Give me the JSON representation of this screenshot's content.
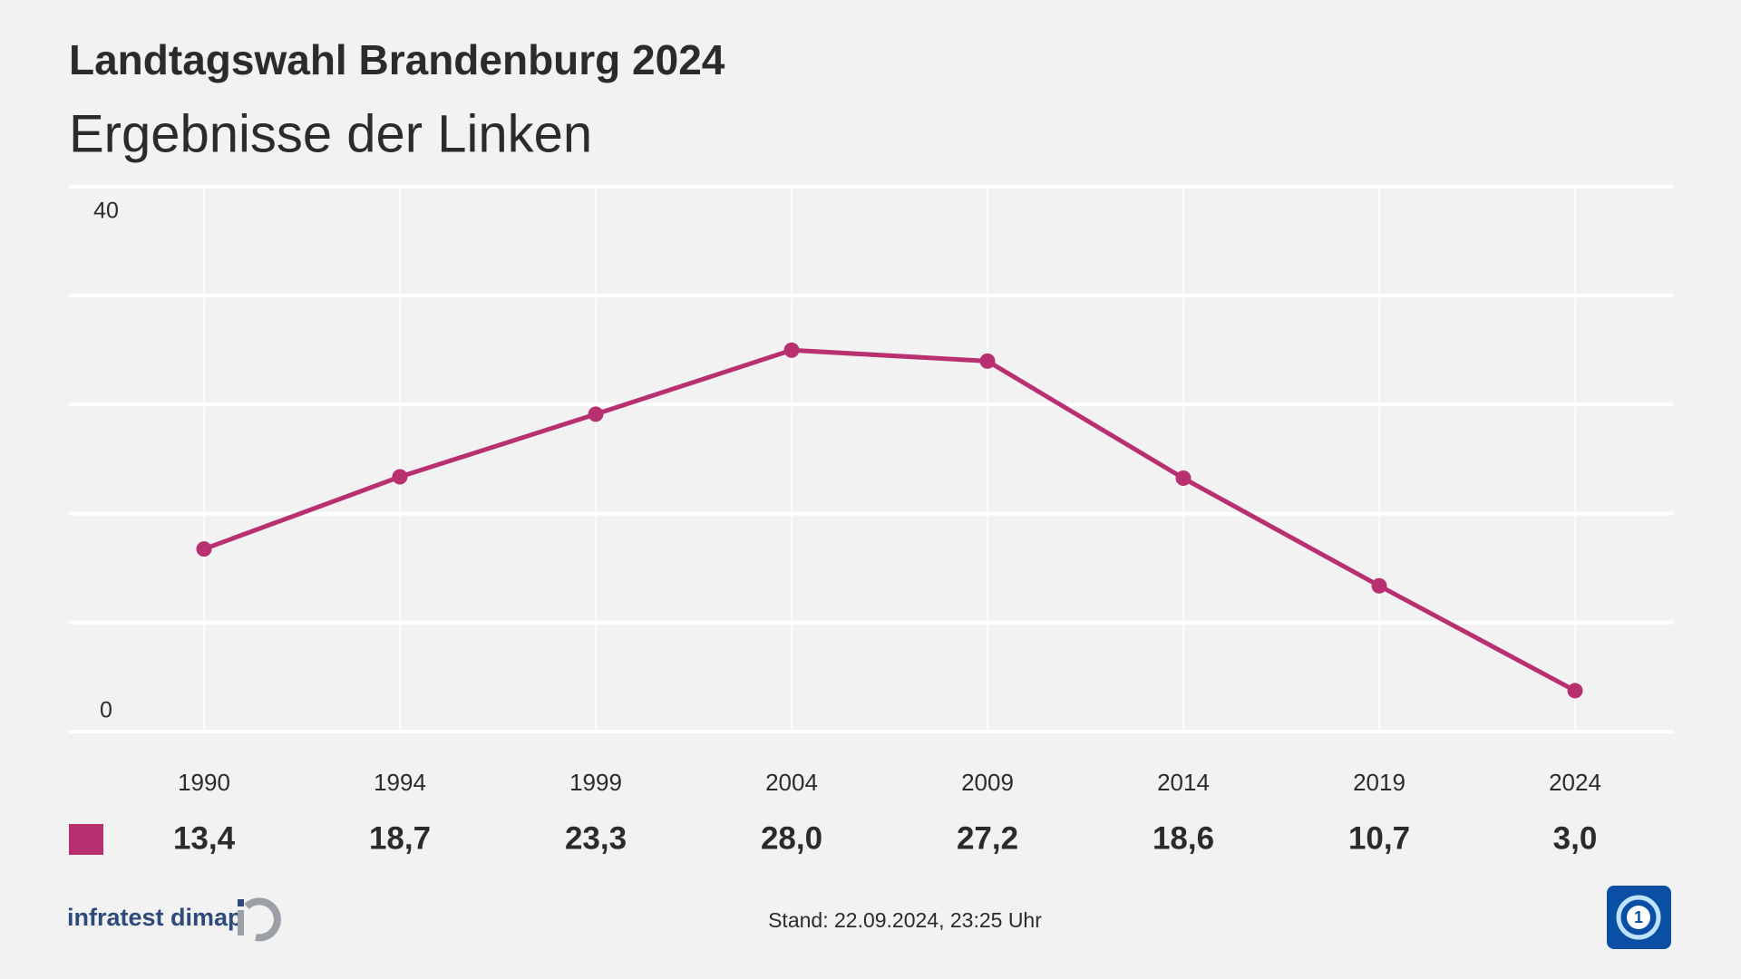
{
  "chart_data": {
    "type": "line",
    "title": "Landtagswahl Brandenburg 2024",
    "subtitle": "Ergebnisse der Linken",
    "categories": [
      "1990",
      "1994",
      "1999",
      "2004",
      "2009",
      "2014",
      "2019",
      "2024"
    ],
    "series": [
      {
        "color": "#b8306f",
        "values": [
          13.4,
          18.7,
          23.3,
          28.0,
          27.2,
          18.6,
          10.7,
          3.0
        ],
        "value_labels": [
          "13,4",
          "18,7",
          "23,3",
          "28,0",
          "27,2",
          "18,6",
          "10,7",
          "3,0"
        ]
      }
    ],
    "ylim": [
      0,
      40
    ],
    "yticks": [
      0,
      40
    ],
    "ygrid": [
      0,
      8,
      16,
      24,
      32,
      40
    ],
    "source": "infratest dimap",
    "timestamp": "Stand:  22.09.2024, 23:25 Uhr"
  }
}
